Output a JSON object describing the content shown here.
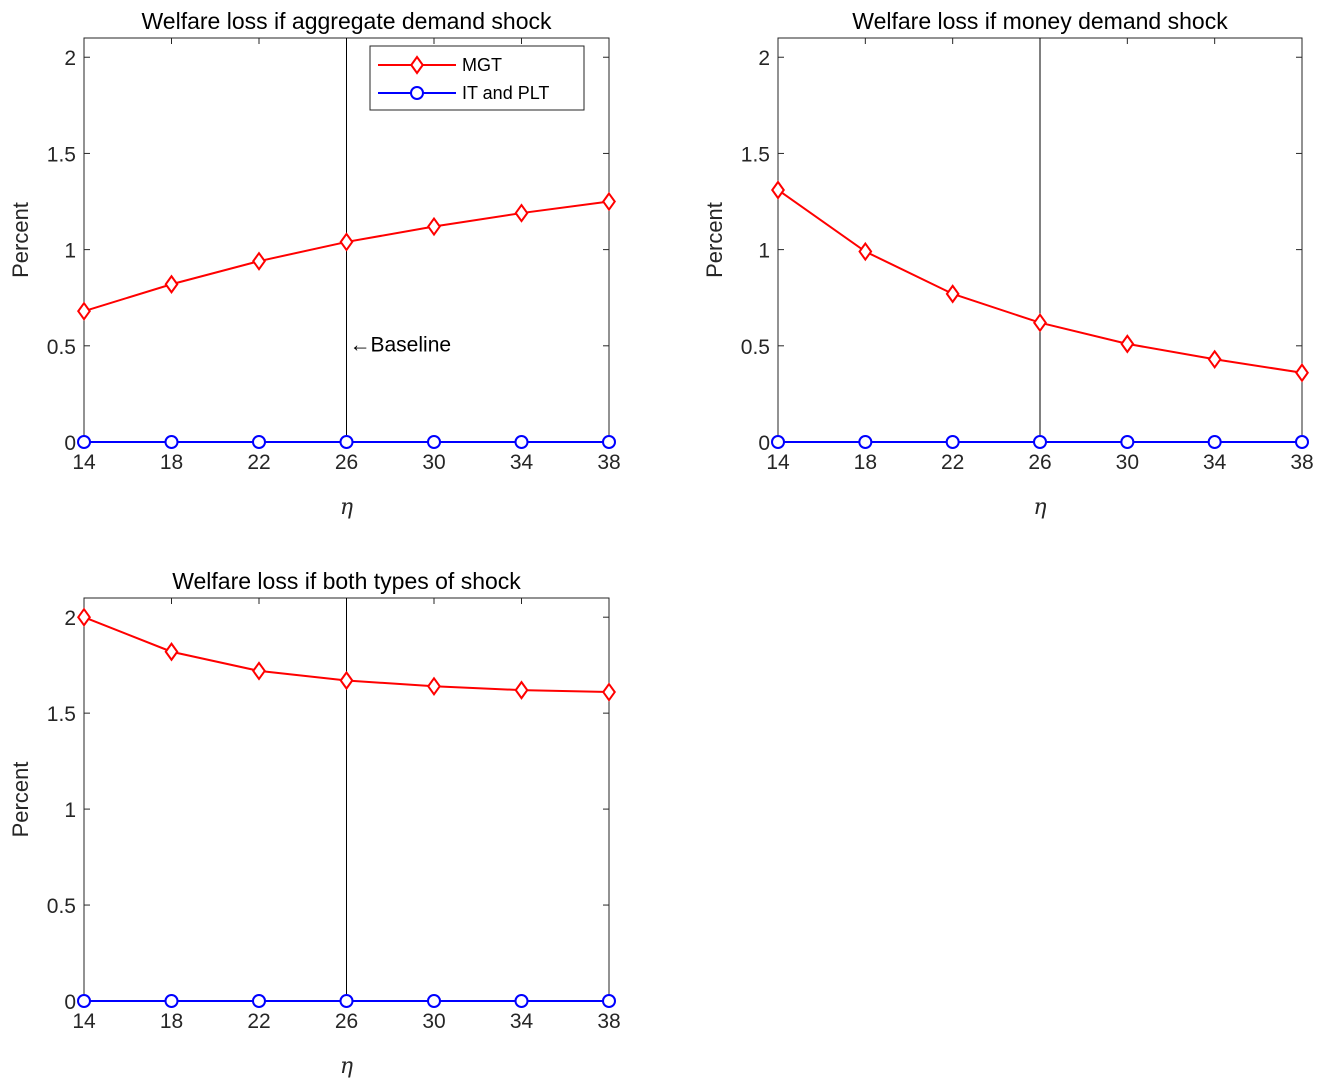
{
  "chart_data": [
    {
      "type": "line",
      "title": "Welfare loss if aggregate demand shock",
      "xlabel": "η",
      "ylabel": "Percent",
      "x": [
        14,
        18,
        22,
        26,
        30,
        34,
        38
      ],
      "xticks": [
        "14",
        "18",
        "22",
        "26",
        "30",
        "34",
        "38"
      ],
      "yticks": [
        "0",
        "0.5",
        "1",
        "1.5",
        "2"
      ],
      "xlim": [
        14,
        38
      ],
      "ylim": [
        0,
        2.1
      ],
      "grid": false,
      "series": [
        {
          "name": "MGT",
          "color": "#ff0000",
          "marker": "diamond",
          "values": [
            0.68,
            0.82,
            0.94,
            1.04,
            1.12,
            1.19,
            1.25
          ]
        },
        {
          "name": "IT and PLT",
          "color": "#0000ff",
          "marker": "circle",
          "values": [
            0,
            0,
            0,
            0,
            0,
            0,
            0
          ]
        }
      ],
      "vline": {
        "x": 26,
        "label": "←Baseline"
      },
      "legend": {
        "position": "top-right"
      }
    },
    {
      "type": "line",
      "title": "Welfare loss if money demand shock",
      "xlabel": "η",
      "ylabel": "Percent",
      "x": [
        14,
        18,
        22,
        26,
        30,
        34,
        38
      ],
      "xticks": [
        "14",
        "18",
        "22",
        "26",
        "30",
        "34",
        "38"
      ],
      "yticks": [
        "0",
        "0.5",
        "1",
        "1.5",
        "2"
      ],
      "xlim": [
        14,
        38
      ],
      "ylim": [
        0,
        2.1
      ],
      "grid": false,
      "series": [
        {
          "name": "MGT",
          "color": "#ff0000",
          "marker": "diamond",
          "values": [
            1.31,
            0.99,
            0.77,
            0.62,
            0.51,
            0.43,
            0.36
          ]
        },
        {
          "name": "IT and PLT",
          "color": "#0000ff",
          "marker": "circle",
          "values": [
            0,
            0,
            0,
            0,
            0,
            0,
            0
          ]
        }
      ],
      "vline": {
        "x": 26,
        "label": ""
      }
    },
    {
      "type": "line",
      "title": "Welfare loss if both types of shock",
      "xlabel": "η",
      "ylabel": "Percent",
      "x": [
        14,
        18,
        22,
        26,
        30,
        34,
        38
      ],
      "xticks": [
        "14",
        "18",
        "22",
        "26",
        "30",
        "34",
        "38"
      ],
      "yticks": [
        "0",
        "0.5",
        "1",
        "1.5",
        "2"
      ],
      "xlim": [
        14,
        38
      ],
      "ylim": [
        0,
        2.1
      ],
      "grid": false,
      "series": [
        {
          "name": "MGT",
          "color": "#ff0000",
          "marker": "diamond",
          "values": [
            2.0,
            1.82,
            1.72,
            1.67,
            1.64,
            1.62,
            1.61
          ]
        },
        {
          "name": "IT and PLT",
          "color": "#0000ff",
          "marker": "circle",
          "values": [
            0,
            0,
            0,
            0,
            0,
            0,
            0
          ]
        }
      ],
      "vline": {
        "x": 26,
        "label": ""
      }
    }
  ]
}
